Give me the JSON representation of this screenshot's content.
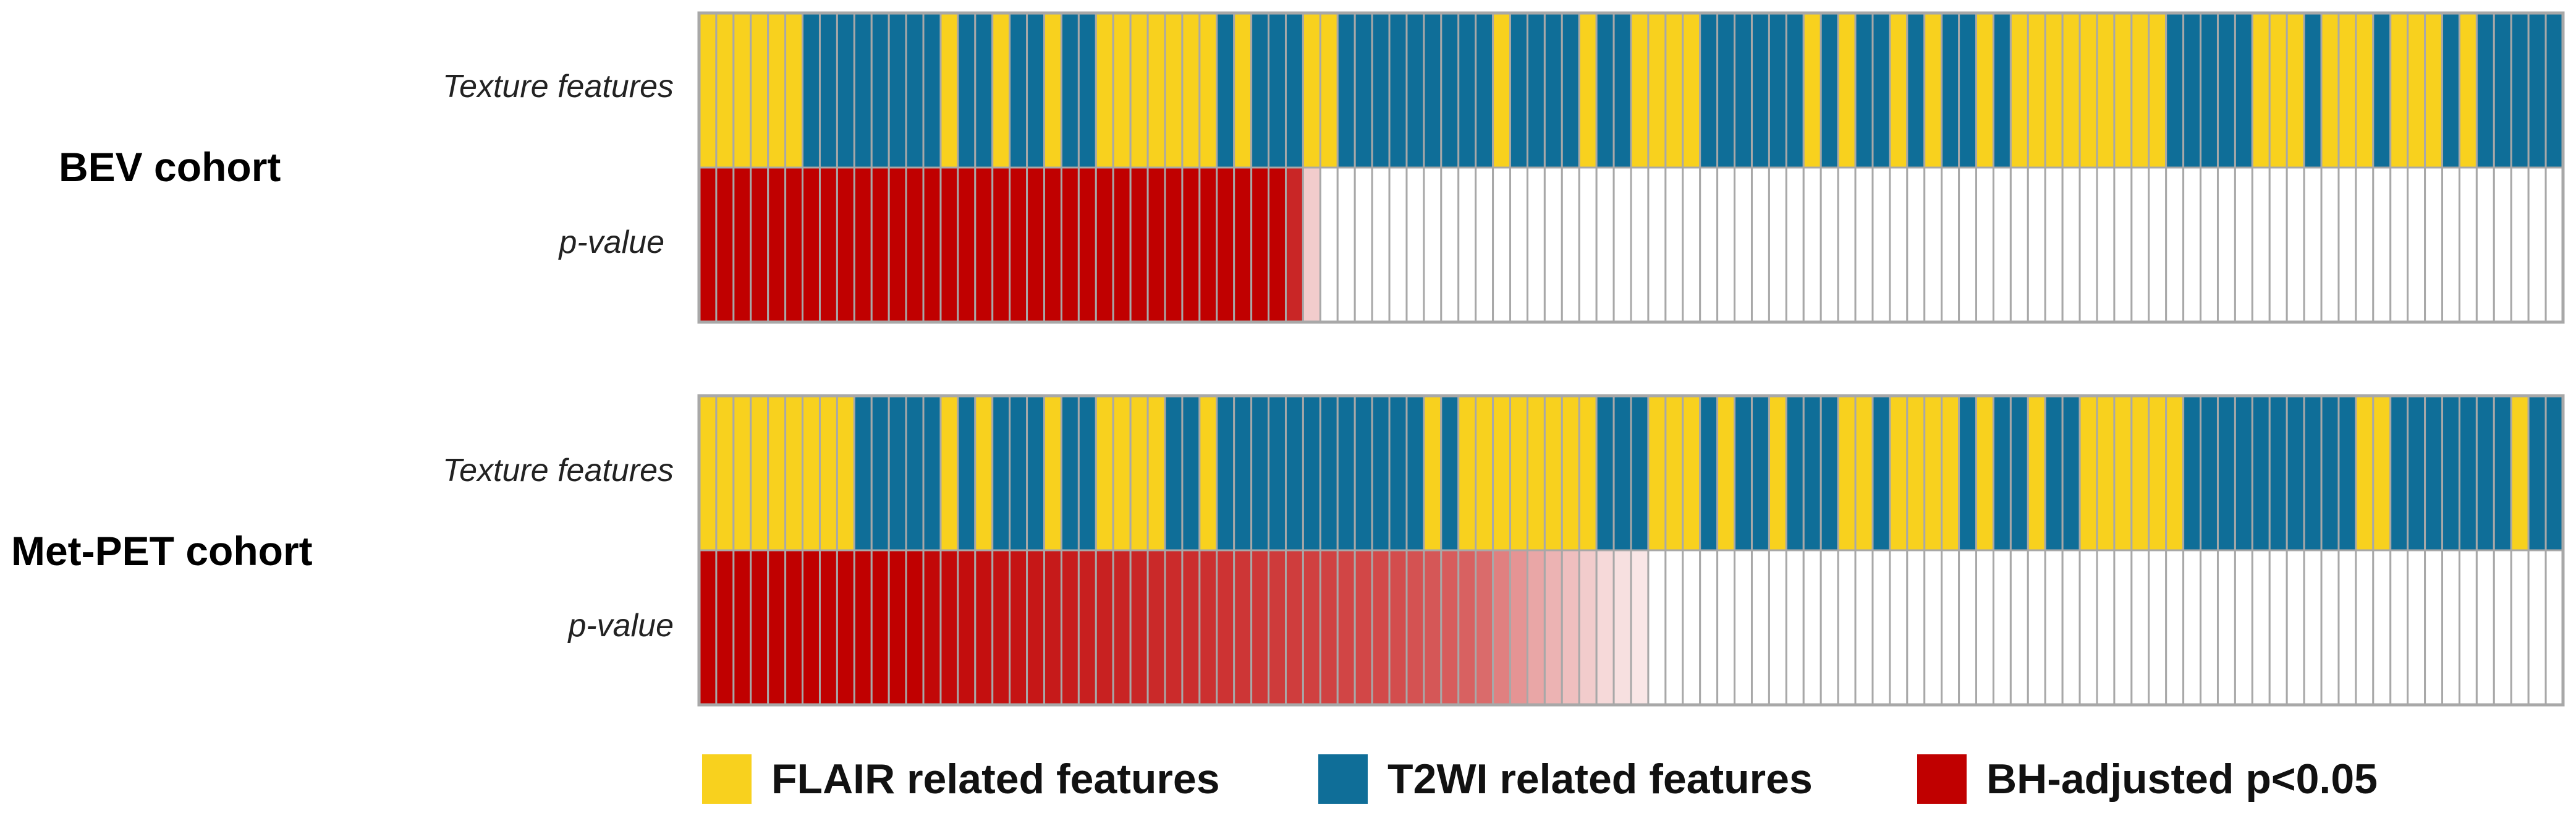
{
  "chart_data": {
    "type": "heatmap",
    "cohorts": [
      {
        "name": "BEV cohort",
        "row_labels": [
          "Texture features",
          "p-value"
        ],
        "texture_features": "YYYYYYBBBBBBBBYBBYBBYBBYYYYYYYBYBBBYYBBBBBBBBBYBBBBYBBYYYYBBBBBBYBYBBYBYBBYBYYYYYYYYYBBBBBYYYBYYYBYYYBYBBBBB",
        "p_value_intensity": [
          1,
          1,
          1,
          1,
          1,
          1,
          1,
          1,
          1,
          1,
          1,
          1,
          1,
          1,
          1,
          1,
          1,
          1,
          1,
          1,
          1,
          1,
          1,
          1,
          1,
          1,
          1,
          1,
          1,
          1,
          1,
          1,
          1,
          1,
          0.85,
          0.2,
          0,
          0,
          0,
          0,
          0,
          0,
          0,
          0,
          0,
          0,
          0,
          0,
          0,
          0,
          0,
          0,
          0,
          0,
          0,
          0,
          0,
          0,
          0,
          0,
          0,
          0,
          0,
          0,
          0,
          0,
          0,
          0,
          0,
          0,
          0,
          0,
          0,
          0,
          0,
          0,
          0,
          0,
          0,
          0,
          0,
          0,
          0,
          0,
          0,
          0,
          0,
          0,
          0,
          0,
          0,
          0,
          0,
          0,
          0,
          0,
          0,
          0,
          0,
          0,
          0,
          0
        ]
      },
      {
        "name": "Met-PET cohort",
        "row_labels": [
          "Texture features",
          "p-value"
        ],
        "texture_features": "YYYYYYYYYBBBBBYBYBBBYBBYYYYBBYBBBBBBBBBBBBYBYYYYYYYYBBBYYYBYBBYBBBYYBYYYYBYBBYBBYYYYYYBBBBBBBBBBYYBBBBBBBYBB",
        "p_value_intensity": [
          1,
          1,
          1,
          1,
          1,
          1,
          1,
          1,
          1,
          1,
          1,
          1,
          1,
          0.97,
          0.96,
          0.95,
          0.94,
          0.93,
          0.92,
          0.91,
          0.9,
          0.89,
          0.88,
          0.87,
          0.86,
          0.85,
          0.84,
          0.83,
          0.82,
          0.81,
          0.8,
          0.79,
          0.78,
          0.77,
          0.76,
          0.75,
          0.74,
          0.73,
          0.72,
          0.71,
          0.7,
          0.68,
          0.66,
          0.64,
          0.62,
          0.58,
          0.5,
          0.42,
          0.35,
          0.3,
          0.25,
          0.2,
          0.15,
          0.12,
          0.1,
          0,
          0,
          0,
          0,
          0,
          0,
          0,
          0,
          0,
          0,
          0,
          0,
          0,
          0,
          0,
          0,
          0,
          0,
          0,
          0,
          0,
          0,
          0,
          0,
          0,
          0,
          0,
          0,
          0,
          0,
          0,
          0,
          0,
          0,
          0,
          0,
          0,
          0,
          0,
          0,
          0,
          0,
          0
        ]
      }
    ]
  },
  "legend": [
    {
      "label": "FLAIR related features",
      "color": "#F8D11E"
    },
    {
      "label": "T2WI related features",
      "color": "#0F6E98"
    },
    {
      "label": "BH-adjusted p<0.05",
      "color": "#C00000"
    }
  ],
  "colors": {
    "yellow": "#F8D11E",
    "blue": "#0F6E98",
    "red": "#C00000",
    "grid": "#A8A8A8",
    "empty": "#FFFFFF"
  }
}
